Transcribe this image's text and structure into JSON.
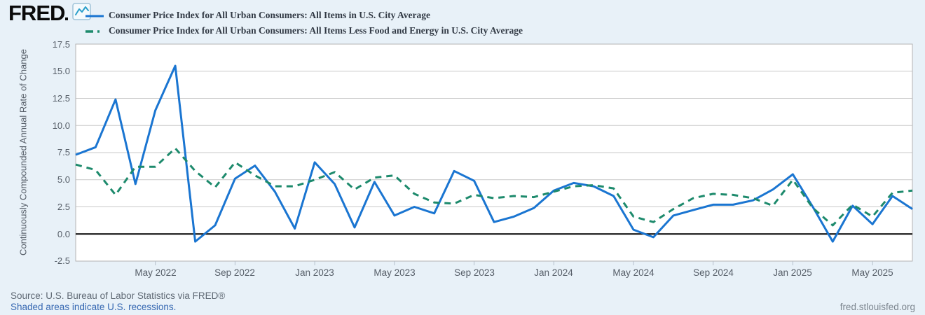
{
  "header": {
    "logo_text": "FRED",
    "legend": [
      {
        "label": "Consumer Price Index for All Urban Consumers: All Items in U.S. City Average",
        "color": "#1a75d1",
        "style": "solid"
      },
      {
        "label": "Consumer Price Index for All Urban Consumers: All Items Less Food and Energy in U.S. City Average",
        "color": "#1d8a6c",
        "style": "dashed"
      }
    ]
  },
  "footer": {
    "source": "Source: U.S. Bureau of Labor Statistics via FRED®",
    "recession_note": "Shaded areas indicate U.S. recessions.",
    "site": "fred.stlouisfed.org"
  },
  "chart_data": {
    "type": "line",
    "ylabel": "Continuously Compounded Annual Rate of Change",
    "ylim": [
      -2.5,
      17.5
    ],
    "y_tick_labels": [
      "17.5",
      "15.0",
      "12.5",
      "10.0",
      "7.5",
      "5.0",
      "2.5",
      "0.0",
      "-2.5"
    ],
    "y_gridlines": [
      15,
      12.5,
      10,
      7.5,
      5,
      2.5
    ],
    "zero_line": true,
    "grid": true,
    "x_start": "2022-01",
    "x_end": "2025-07",
    "x_frequency": "monthly",
    "x_tick_labels": [
      "May 2022",
      "Sep 2022",
      "Jan 2023",
      "May 2023",
      "Sep 2023",
      "Jan 2024",
      "May 2024",
      "Sep 2024",
      "Jan 2025",
      "May 2025"
    ],
    "x_tick_month_indices": [
      4,
      8,
      12,
      16,
      20,
      24,
      28,
      32,
      36,
      40
    ],
    "colors": {
      "grid": "#c9c9c9",
      "zero_line": "#000000",
      "border": "#b3b3b3",
      "plot_bg": "#ffffff",
      "page_bg": "#e8f1f8",
      "tick": "#b6c0cb"
    },
    "series": [
      {
        "name": "Consumer Price Index for All Urban Consumers: All Items in U.S. City Average",
        "color": "#1a75d1",
        "style": "solid",
        "values": [
          7.3,
          8.0,
          12.4,
          4.6,
          11.4,
          15.5,
          -0.7,
          0.8,
          5.1,
          6.3,
          3.9,
          0.5,
          6.6,
          4.6,
          0.6,
          4.8,
          1.7,
          2.5,
          1.9,
          5.8,
          4.9,
          1.1,
          1.6,
          2.4,
          4.0,
          4.7,
          4.4,
          3.5,
          0.4,
          -0.3,
          1.7,
          2.2,
          2.7,
          2.7,
          3.1,
          4.1,
          5.5,
          2.5,
          -0.7,
          2.6,
          0.9,
          3.5,
          2.3
        ]
      },
      {
        "name": "Consumer Price Index for All Urban Consumers: All Items Less Food and Energy in U.S. City Average",
        "color": "#1d8a6c",
        "style": "dashed",
        "values": [
          6.4,
          5.9,
          3.6,
          6.2,
          6.2,
          7.9,
          5.8,
          4.3,
          6.6,
          5.4,
          4.4,
          4.4,
          5.0,
          5.7,
          4.1,
          5.2,
          5.4,
          3.7,
          2.9,
          2.8,
          3.6,
          3.3,
          3.5,
          3.4,
          3.9,
          4.4,
          4.5,
          4.2,
          1.6,
          1.1,
          2.3,
          3.3,
          3.7,
          3.6,
          3.3,
          2.6,
          5.0,
          2.4,
          0.8,
          2.7,
          1.6,
          3.8,
          4.0
        ]
      }
    ]
  }
}
